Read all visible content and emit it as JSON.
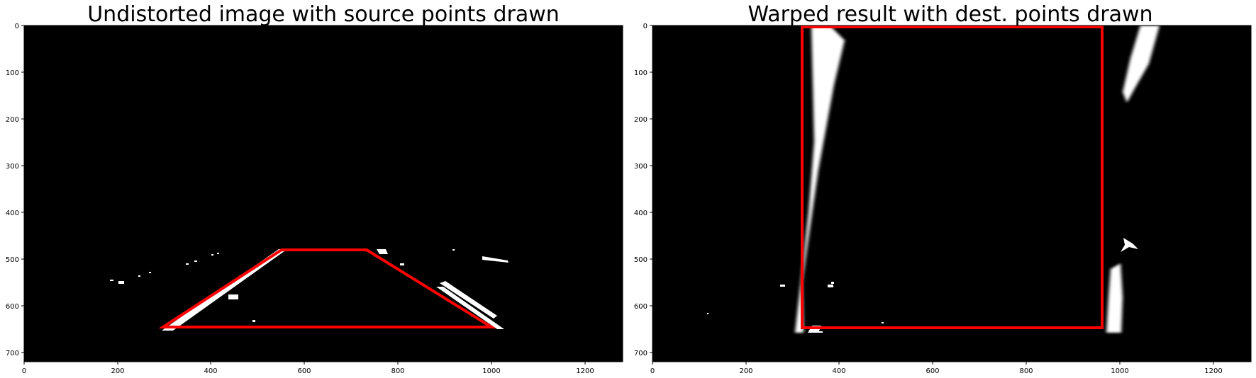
{
  "panels": [
    {
      "title": "Undistorted image with source points drawn",
      "x_ticks": [
        "0",
        "200",
        "400",
        "600",
        "800",
        "1000",
        "1200"
      ],
      "y_ticks": [
        "0",
        "100",
        "200",
        "300",
        "400",
        "500",
        "600",
        "700"
      ]
    },
    {
      "title": "Warped result with dest. points drawn",
      "x_ticks": [
        "0",
        "200",
        "400",
        "600",
        "800",
        "1000",
        "1200"
      ],
      "y_ticks": [
        "0",
        "100",
        "200",
        "300",
        "400",
        "500",
        "600",
        "700"
      ]
    }
  ],
  "colors": {
    "background": "#000000",
    "lane": "#ffffff",
    "outline": "#ff0000"
  }
}
